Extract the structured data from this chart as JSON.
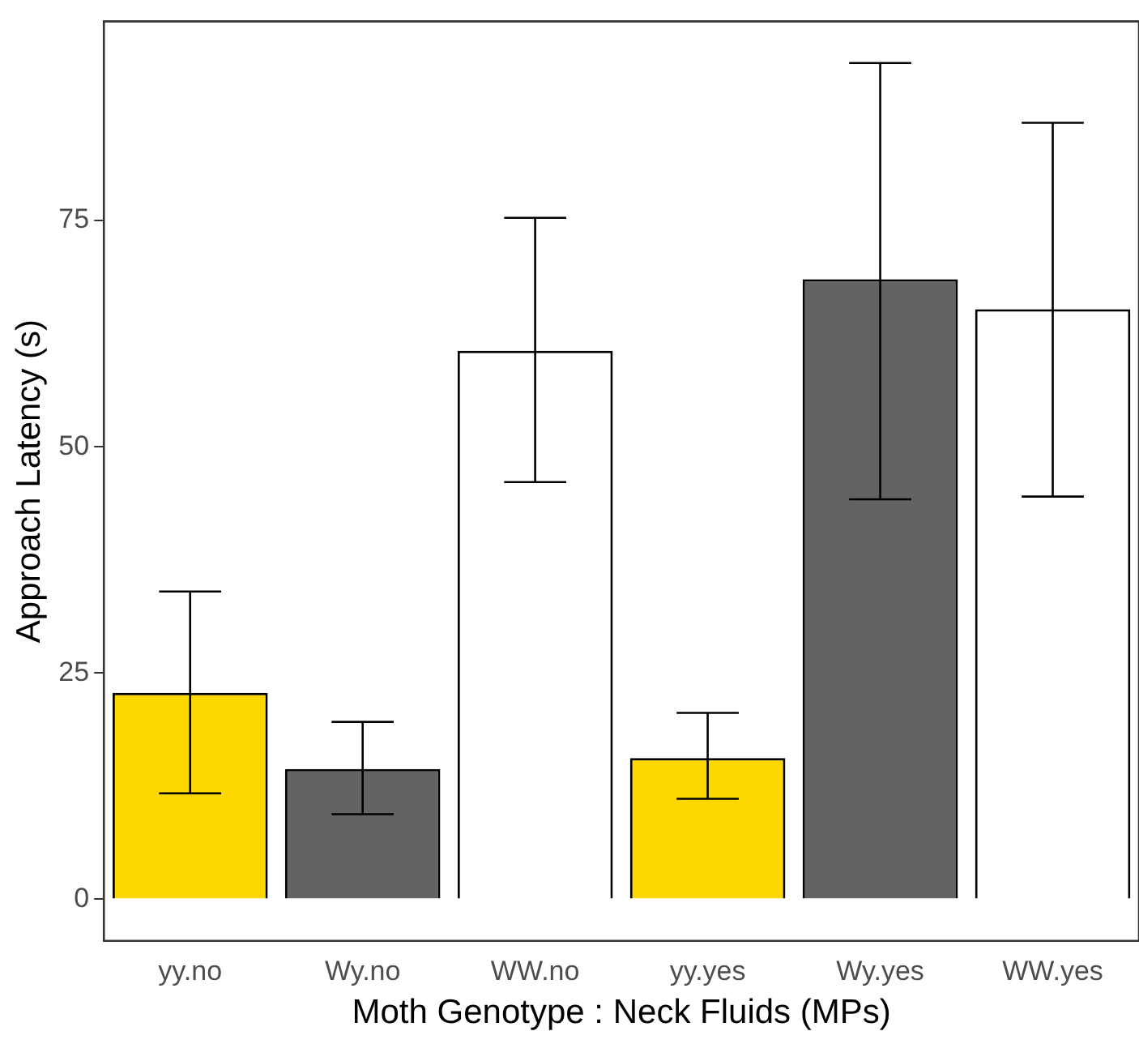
{
  "chart_data": {
    "type": "bar",
    "xlabel": "Moth Genotype : Neck Fluids (MPs)",
    "ylabel": "Approach Latency (s)",
    "categories": [
      "yy.no",
      "Wy.no",
      "WW.no",
      "yy.yes",
      "Wy.yes",
      "WW.yes"
    ],
    "values": [
      22.8,
      14.4,
      60.6,
      15.6,
      68.5,
      65.2
    ],
    "colors": [
      "#ffd700",
      "#636363",
      "#ffffff",
      "#ffd700",
      "#636363",
      "#ffffff"
    ],
    "errors": [
      [
        11.7,
        34.0
      ],
      [
        9.4,
        19.6
      ],
      [
        46.1,
        75.3
      ],
      [
        11.1,
        20.6
      ],
      [
        44.2,
        92.4
      ],
      [
        44.5,
        85.8
      ]
    ],
    "ylim": [
      -4.6,
      97
    ],
    "yticks": [
      0,
      25,
      50,
      75
    ],
    "grid": false,
    "legend": false
  }
}
